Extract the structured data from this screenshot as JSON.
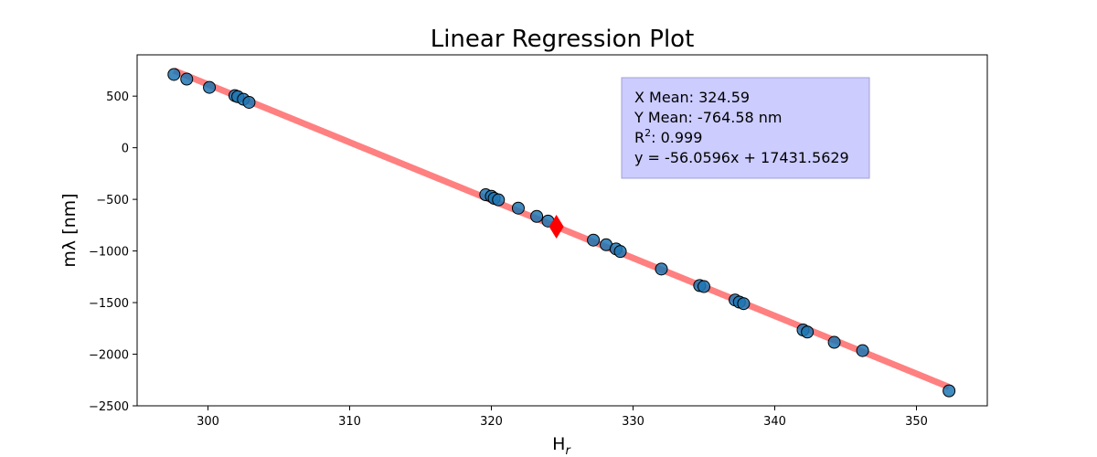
{
  "chart_data": {
    "type": "scatter",
    "title": "Linear Regression Plot",
    "xlabel_main": "H",
    "xlabel_sub": "r",
    "ylabel": "mλ [nm]",
    "xlim": [
      295,
      355
    ],
    "ylim": [
      -2500,
      900
    ],
    "xticks": [
      300,
      310,
      320,
      330,
      340,
      350
    ],
    "yticks": [
      500,
      0,
      -500,
      -1000,
      -1500,
      -2000,
      -2500
    ],
    "grid": false,
    "points": [
      {
        "x": 297.6,
        "y": 710
      },
      {
        "x": 298.5,
        "y": 665
      },
      {
        "x": 300.1,
        "y": 585
      },
      {
        "x": 301.9,
        "y": 505
      },
      {
        "x": 302.1,
        "y": 495
      },
      {
        "x": 302.5,
        "y": 470
      },
      {
        "x": 302.9,
        "y": 440
      },
      {
        "x": 319.6,
        "y": -455
      },
      {
        "x": 320.0,
        "y": -470
      },
      {
        "x": 320.2,
        "y": -490
      },
      {
        "x": 320.5,
        "y": -505
      },
      {
        "x": 321.9,
        "y": -585
      },
      {
        "x": 323.2,
        "y": -665
      },
      {
        "x": 324.0,
        "y": -710
      },
      {
        "x": 327.2,
        "y": -895
      },
      {
        "x": 328.1,
        "y": -940
      },
      {
        "x": 328.8,
        "y": -980
      },
      {
        "x": 329.1,
        "y": -1005
      },
      {
        "x": 332.0,
        "y": -1175
      },
      {
        "x": 334.7,
        "y": -1335
      },
      {
        "x": 335.0,
        "y": -1345
      },
      {
        "x": 337.2,
        "y": -1475
      },
      {
        "x": 337.5,
        "y": -1495
      },
      {
        "x": 337.8,
        "y": -1510
      },
      {
        "x": 342.0,
        "y": -1765
      },
      {
        "x": 342.3,
        "y": -1785
      },
      {
        "x": 344.2,
        "y": -1885
      },
      {
        "x": 346.2,
        "y": -1965
      },
      {
        "x": 352.3,
        "y": -2355
      }
    ],
    "mean_point": {
      "x": 324.59,
      "y": -764.58
    },
    "fit_line": {
      "slope": -56.0596,
      "intercept": 17431.5629,
      "x_range": [
        297.6,
        352.3
      ]
    },
    "stats": {
      "x_mean_text": "X Mean: 324.59",
      "y_mean_text": "Y Mean: -764.58 nm",
      "r2_prefix": "R",
      "r2_sup": "2",
      "r2_value": ": 0.999",
      "equation_text": "y = -56.0596x + 17431.5629"
    },
    "colors": {
      "points_fill": "#1f77b4",
      "points_edge": "#000000",
      "fit_line": "#ff8080",
      "mean_marker": "#ff0000",
      "stats_box_fill": "#ccccff",
      "stats_box_edge": "#a0a0d8"
    },
    "mean_marker_shape": "diamond"
  }
}
